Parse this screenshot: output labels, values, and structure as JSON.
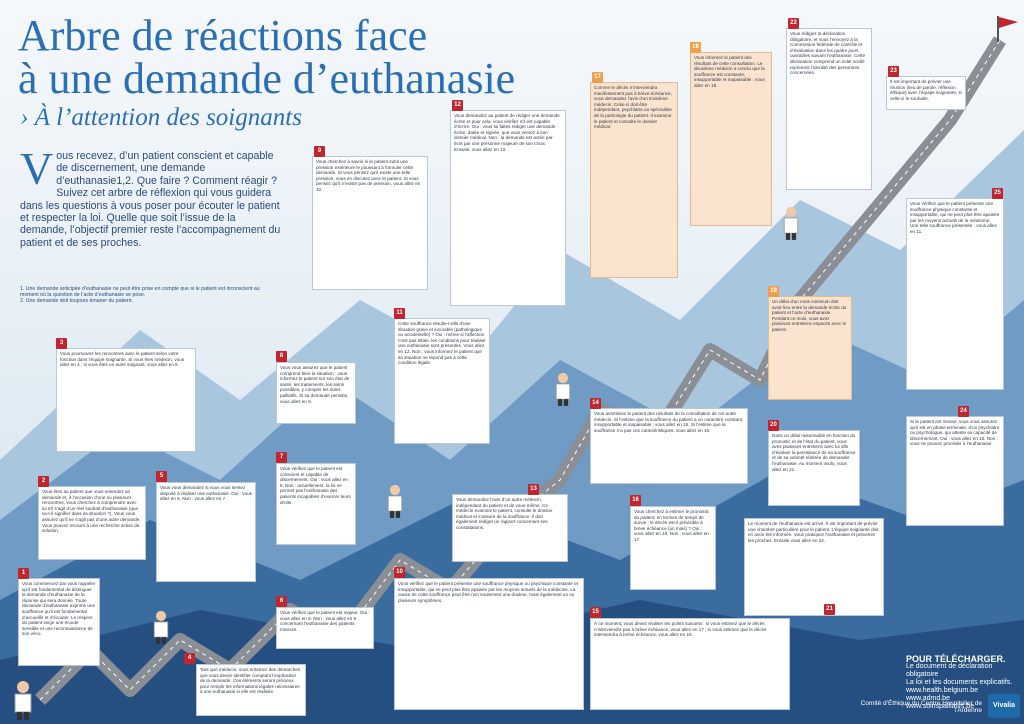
{
  "title_line1": "Arbre de réactions face",
  "title_line2": "à une demande d’euthanasie",
  "subtitle": "› À l’attention des soignants",
  "intro": {
    "drop": "V",
    "text": "ous recevez, d’un patient conscient et capable de discernement, une demande d’euthanasie1,2. Que faire ? Comment réagir ? Suivez cet arbre de réflexion qui vous guidera dans les questions à vous poser pour écouter le patient et respecter la loi. Quelle que soit l’issue de la demande, l’objectif premier reste l’accompagnement du patient et de ses proches."
  },
  "notes": [
    "1. Une demande anticipée d’euthanasie ne peut être prise en compte que si le patient est inconscient au moment où la question de l’acte d’euthanasie se pose.",
    "2. Une demande doit toujours émaner du patient."
  ],
  "boxes": [
    {
      "id": "1",
      "text": "Vous commencez par vous rappeler qu’il est fondamental de distinguer la demande d’euthanasie de la réponse qui sera donnée. Toute demande d’euthanasie exprime une souffrance qu’il est fondamental d’accueillir et d’écouter. Le respect du patient exige une écoute sensible et une reconnaissance de son vécu."
    },
    {
      "id": "2",
      "text": "Vous êtes au patient que vous entendez sa demande et, à l’occasion d’une ou plusieurs rencontres, vous cherchez à comprendre avec lui s’il s’agit d’un réel souhait d’euthanasie (que va-t-il signifier dans sa situation ?). Vous vous assurez qu’il ne s’agit pas d’une autre demande. Vous pouvez recourir à une recherche active de solution."
    },
    {
      "id": "3",
      "text": "Vous poursuivez les rencontres avec le patient selon votre fonction dans l’équipe soignante. Si vous êtes médecin, vous allez en 4 ; si vous êtes un autre soignant, vous allez en 5."
    },
    {
      "id": "4",
      "text": "Tant que médecin, vous entamez des démarches que vous devez identifier comptant l’explication de la demande. Ces éléments seront précieux pour remplir les informations légales nécessaires à une euthanasie si elle est réalisée."
    },
    {
      "id": "5",
      "text": "Vous vous demandez si vous vous sentez disposé à réaliser une euthanasie. Oui : vous allez en 6. Non : vous allez en 7."
    },
    {
      "id": "6",
      "text": "Vous vérifiez que le patient est majeur. Oui : vous allez en 8. Non : vous allez en 9 concernant l’euthanasie des patients mineurs."
    },
    {
      "id": "7",
      "text": "Vous vérifiez que le patient est conscient et capable de discernement. Oui : vous allez en 8. Non : actuellement, la loi ne permet pas l’euthanasie des patients incapables d’exercer leurs droits."
    },
    {
      "id": "8",
      "text": "Vous vous assurez que le patient comprend bien la situation : vous informez le patient sur son état de santé, les traitements, les soins possibles, y compris les soins palliatifs. Si sa demande persiste, vous allez en 9."
    },
    {
      "id": "9",
      "text": "Vous cherchez à savoir si le patient subit une pression extérieure le poussant à formuler cette demande. Si vous pensez qu’il existe une telle pression, vous en discutez avec le patient. Si vous pensez qu’il n’existe pas de pression, vous allez en 10."
    },
    {
      "id": "10",
      "text": "Vous vérifiez que le patient présente une souffrance physique ou psychique constante et insupportable, qui ne peut plus être apaisée par les moyens actuels de la médecine. La cause de cette souffrance peut être non seulement une douleur, mais également un ou plusieurs symptômes."
    },
    {
      "id": "11",
      "text": "Cette souffrance résulte-t-elle d’une situation grave et incurable (pathologique ou accidentelle) ? Oui : même si l’affection n’est pas létale, les conditions pour réaliser une euthanasie sont présentes. Vous allez en 12. Non : vous informez le patient que sa situation ne répond pas à cette condition légale."
    },
    {
      "id": "12",
      "text": "Vous demandez au patient de rédiger une demande écrite et pour cela, vous vérifiez s’il est capable d’écrire. Oui : vous lui faites rédiger une demande écrite, datée et signée, que vous versez à son dossier médical. Non : la demande est actée par écrit par une personne majeure de son choix. Ensuite, vous allez en 13."
    },
    {
      "id": "13",
      "text": "Vous demandez l’avis d’un autre médecin, indépendant du patient et de vous-même. Ce médecin examine le patient, consulte le dossier médical et s’assure de la souffrance. Il doit également rédiger un rapport concernant ses constatations."
    },
    {
      "id": "14",
      "text": "Vous avertissez le patient des résultats de la consultation de cet autre médecin. Si l’estime que la souffrance du patient a un caractère constant, insupportable et inapaisable : vous allez en 15. Si l’estime que la souffrance n’a pas ces caractéristiques, vous allez en 16."
    },
    {
      "id": "15",
      "text": "À ce moment, vous devez réaliser les points suivants : si vous estimez que le décès n’interviendra pas à brève échéance, vous allez en 17 ; si vous estimez que le décès interviendra à brève échéance, vous allez en 18."
    },
    {
      "id": "16",
      "text": "Vous cherchez à estimer le pronostic du patient, en termes de temps de survie : le décès est-il prévisible à brève échéance (un mois) ? Oui : vous allez en 18. Non : vous allez en 17."
    },
    {
      "id": "17",
      "text": "Comme le décès n’interviendra manifestement pas à brève échéance, vous demandez l’avis d’un troisième médecin. Celui-ci doit être indépendant, psychiatre ou spécialiste de la pathologie du patient. Il examine le patient et consulte le dossier médical."
    },
    {
      "id": "18",
      "text": "Vous informez le patient des résultats de cette consultation. Le deuxième médecin a conclu que la souffrance est constante, insupportable et inapaisable : vous allez en 19."
    },
    {
      "id": "19",
      "text": "Un délai d’un mois minimum doit avoir lieu entre la demande écrite du patient et l’acte d’euthanasie. Pendant ce mois, vous avez plusieurs entretiens espacés avec le patient."
    },
    {
      "id": "20",
      "text": "Dans un délai raisonnable en fonction du pronostic et de l’état du patient, vous avez plusieurs entretiens avec lui afin d’évaluer la persistance de sa souffrance et de sa volonté réitérée de demander l’euthanasie. Au moment voulu, vous allez en 21."
    },
    {
      "id": "21",
      "text": "Le moment de l’euthanasie est arrivé. Il est important de prévoir une chambre particulière pour le patient. L’équipe soignante doit en avoir été informée. Vous pratiquez l’euthanasie et prévenez les proches. Ensuite vous allez en 22."
    },
    {
      "id": "22",
      "text": "Vous rédigez la déclaration obligatoire, et vous l’envoyez à la Commission fédérale de contrôle et d’évaluation dans les quatre jours ouvrables suivant l’euthanasie. Cette déclaration comprend un volet scellé reprenant l’identité des personnes concernées."
    },
    {
      "id": "23",
      "text": "Il est important de prévoir une réunion (lieu de parole, réflexion éthique) avec l’équipe soignante, si celle-ci le souhaite."
    },
    {
      "id": "24",
      "text": "Si le patient est mineur, vous vous assurez qu’il est en phase terminale, d’un psychiatre ou psychologue, qui atteste sa capacité de discernement. Oui : vous allez en 10. Non : vous ne pouvez procéder à l’euthanasie."
    },
    {
      "id": "25",
      "text": "Vous vérifiez que le patient présente une souffrance physique constante et insupportable, qui ne peut plus être apaisée par les moyens actuels de la médecine. Une telle souffrance présentée : vous allez en 11."
    }
  ],
  "download": {
    "heading": "POUR TÉLÉCHARGER.",
    "line1": "Le document de déclaration obligatoire",
    "line2": "La loi et les documents explicatifs.",
    "links": [
      "www.health.belgium.be",
      "www.admd.be",
      "www.soinspalliatifs.be"
    ]
  },
  "footer": "Comité d’Éthique du Centre Hospitalier de l’Ardenne",
  "logo": "Vivalia",
  "colors": {
    "title": "#2a6fb4",
    "accent": "#c0262d",
    "peach": "#fbe4cf"
  }
}
